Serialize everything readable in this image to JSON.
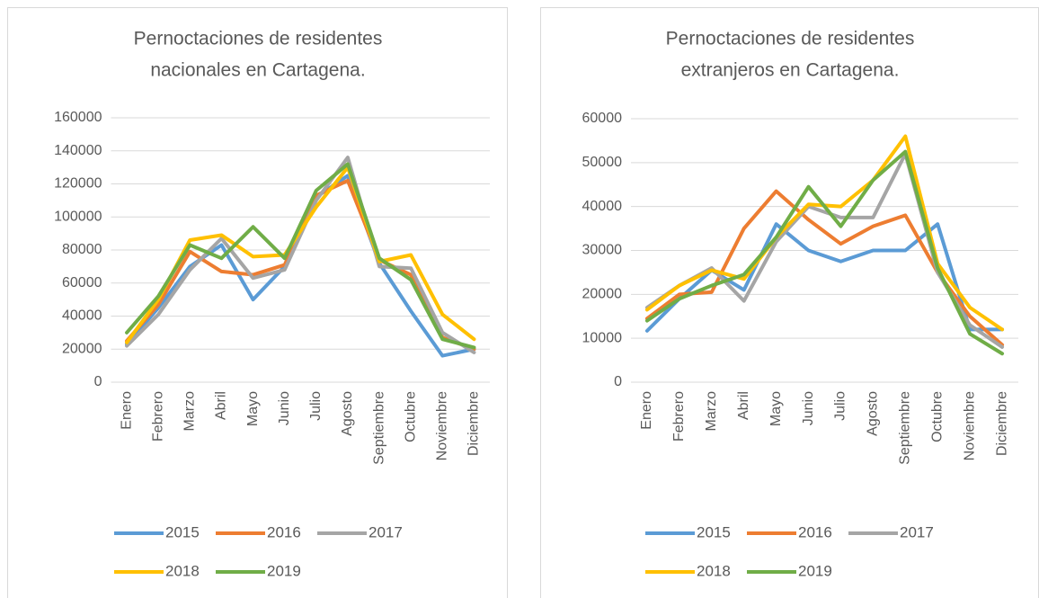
{
  "chart_data": [
    {
      "type": "line",
      "title": [
        "Pernoctaciones de residentes",
        "nacionales en Cartagena."
      ],
      "categories": [
        "Enero",
        "Febrero",
        "Marzo",
        "Abril",
        "Mayo",
        "Junio",
        "Julio",
        "Agosto",
        "Septiembre",
        "Octubre",
        "Noviembre",
        "Diciembre"
      ],
      "series": [
        {
          "name": "2015",
          "color": "#5b9bd5",
          "values": [
            23000,
            45000,
            70000,
            83000,
            50000,
            70000,
            112000,
            125000,
            72000,
            43000,
            16000,
            20000
          ]
        },
        {
          "name": "2016",
          "color": "#ed7d31",
          "values": [
            25000,
            47000,
            79000,
            67000,
            65000,
            71000,
            113000,
            122000,
            74000,
            65000,
            27000,
            20000
          ]
        },
        {
          "name": "2017",
          "color": "#a5a5a5",
          "values": [
            22000,
            41000,
            68000,
            87000,
            63000,
            68000,
            110000,
            136000,
            70000,
            69000,
            30000,
            18000
          ]
        },
        {
          "name": "2018",
          "color": "#ffc000",
          "values": [
            24000,
            50000,
            86000,
            89000,
            76000,
            77000,
            106000,
            130000,
            73000,
            77000,
            41000,
            26000
          ]
        },
        {
          "name": "2019",
          "color": "#70ad47",
          "values": [
            30000,
            52000,
            83000,
            75000,
            94000,
            75000,
            116000,
            132000,
            75000,
            62000,
            26000,
            21000
          ]
        }
      ],
      "ylim": [
        0,
        160000
      ],
      "yticks": [
        0,
        20000,
        40000,
        60000,
        80000,
        100000,
        120000,
        140000,
        160000
      ],
      "grid": true,
      "legend": "bottom"
    },
    {
      "type": "line",
      "title": [
        "Pernoctaciones de residentes",
        "extranjeros en Cartagena."
      ],
      "categories": [
        "Enero",
        "Febrero",
        "Marzo",
        "Abril",
        "Mayo",
        "Junio",
        "Julio",
        "Agosto",
        "Septiembre",
        "Octubre",
        "Noviembre",
        "Diciembre"
      ],
      "series": [
        {
          "name": "2015",
          "color": "#5b9bd5",
          "values": [
            11700,
            19000,
            25500,
            21000,
            36000,
            30000,
            27500,
            30000,
            30000,
            36000,
            12000,
            12000
          ]
        },
        {
          "name": "2016",
          "color": "#ed7d31",
          "values": [
            14500,
            20000,
            20500,
            35000,
            43500,
            37000,
            31500,
            35500,
            38000,
            25000,
            15000,
            8500
          ]
        },
        {
          "name": "2017",
          "color": "#a5a5a5",
          "values": [
            17000,
            22000,
            26000,
            18500,
            32000,
            40000,
            37500,
            37500,
            52000,
            25000,
            13000,
            8000
          ]
        },
        {
          "name": "2018",
          "color": "#ffc000",
          "values": [
            16500,
            22000,
            25500,
            23500,
            33000,
            40500,
            40000,
            46000,
            56000,
            27000,
            17000,
            12000
          ]
        },
        {
          "name": "2019",
          "color": "#70ad47",
          "values": [
            14000,
            19000,
            22000,
            24500,
            33000,
            44500,
            35500,
            46000,
            52500,
            26000,
            11000,
            6500
          ]
        }
      ],
      "ylim": [
        0,
        60000
      ],
      "yticks": [
        0,
        10000,
        20000,
        30000,
        40000,
        50000,
        60000
      ],
      "grid": true,
      "legend": "bottom"
    }
  ]
}
